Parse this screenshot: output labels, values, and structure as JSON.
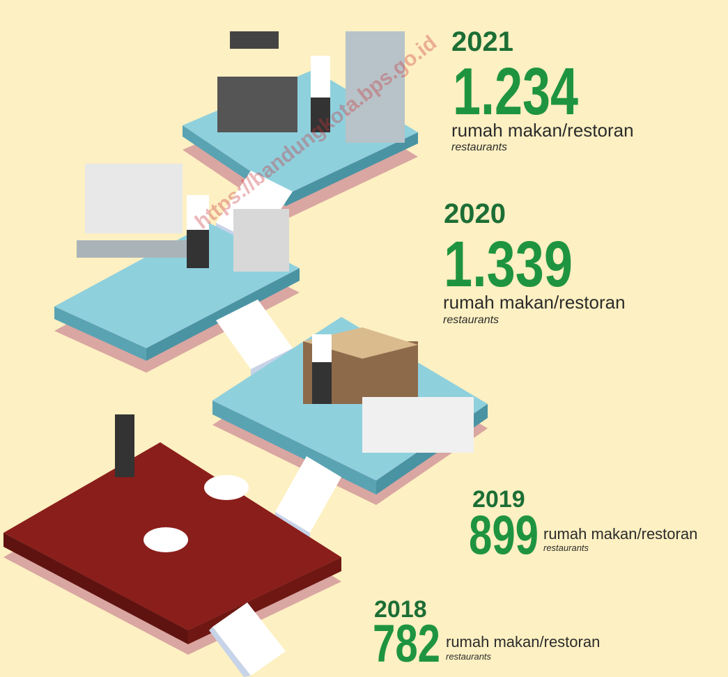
{
  "watermark": "https://bandungkota.bps.go.id",
  "entries": [
    {
      "year": "2021",
      "value": "1.234",
      "label": "rumah makan/restoran",
      "sublabel": "restaurants"
    },
    {
      "year": "2020",
      "value": "1.339",
      "label": "rumah makan/restoran",
      "sublabel": "restaurants"
    },
    {
      "year": "2019",
      "value": "899",
      "label": "rumah makan/restoran",
      "sublabel": "restaurants"
    },
    {
      "year": "2018",
      "value": "782",
      "label": "rumah makan/restoran",
      "sublabel": "restaurants"
    }
  ]
}
